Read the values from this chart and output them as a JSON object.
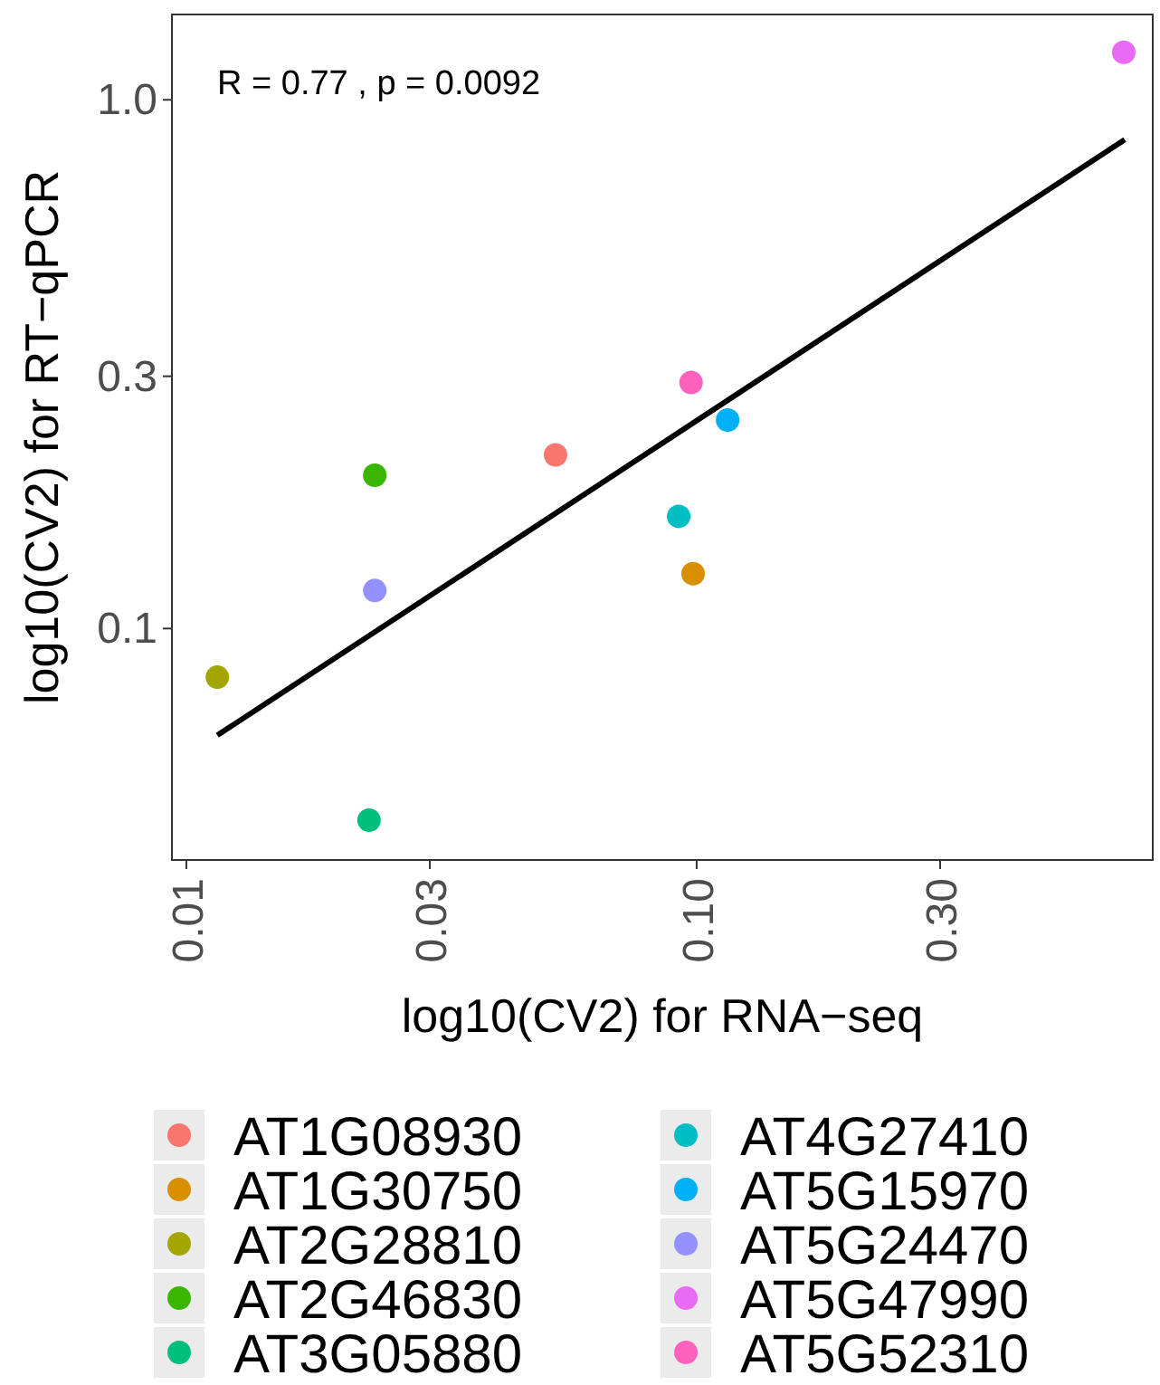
{
  "chart_data": {
    "type": "scatter",
    "xlabel": "log10(CV2) for RNA−seq",
    "ylabel": "log10(CV2) for RT−qPCR",
    "log": "xy",
    "grid": false,
    "legend": "bottom",
    "marker": "circle",
    "xlim": [
      0.00937,
      0.783
    ],
    "xticks": [
      {
        "value": 0.01,
        "label": "0.01"
      },
      {
        "value": 0.03,
        "label": "0.03"
      },
      {
        "value": 0.1,
        "label": "0.10"
      },
      {
        "value": 0.3,
        "label": "0.30"
      }
    ],
    "ylim": [
      0.0365,
      1.45
    ],
    "yticks": [
      {
        "value": 0.1,
        "label": "0.1"
      },
      {
        "value": 0.3,
        "label": "0.3"
      },
      {
        "value": 1,
        "label": "1.0"
      }
    ],
    "annotations": [
      "R = 0.77 , p = 0.0092"
    ],
    "series": [
      {
        "name": "AT1G08930",
        "color": "#F8766D",
        "x": [
          0.0529
        ],
        "values": [
          0.213
        ]
      },
      {
        "name": "AT1G30750",
        "color": "#D89000",
        "x": [
          0.0984
        ],
        "values": [
          0.127
        ]
      },
      {
        "name": "AT2G28810",
        "color": "#A3A500",
        "x": [
          0.0115
        ],
        "values": [
          0.0809
        ]
      },
      {
        "name": "AT2G46830",
        "color": "#39B600",
        "x": [
          0.0234
        ],
        "values": [
          0.195
        ]
      },
      {
        "name": "AT3G05880",
        "color": "#00BF7D",
        "x": [
          0.0228
        ],
        "values": [
          0.0434
        ]
      },
      {
        "name": "AT4G27410",
        "color": "#00BFC4",
        "x": [
          0.0922
        ],
        "values": [
          0.163
        ]
      },
      {
        "name": "AT5G15970",
        "color": "#00B0F6",
        "x": [
          0.115
        ],
        "values": [
          0.248
        ]
      },
      {
        "name": "AT5G24470",
        "color": "#9590FF",
        "x": [
          0.0234
        ],
        "values": [
          0.118
        ]
      },
      {
        "name": "AT5G47990",
        "color": "#E76BF3",
        "x": [
          0.687
        ],
        "values": [
          1.23
        ]
      },
      {
        "name": "AT5G52310",
        "color": "#FF62BC",
        "x": [
          0.0975
        ],
        "values": [
          0.292
        ]
      },
      {
        "type": "line",
        "color": "#000000",
        "line_style": "solid",
        "marker": "none",
        "x": [
          0.0115,
          0.69
        ],
        "values": [
          0.0628,
          0.841
        ]
      }
    ]
  }
}
